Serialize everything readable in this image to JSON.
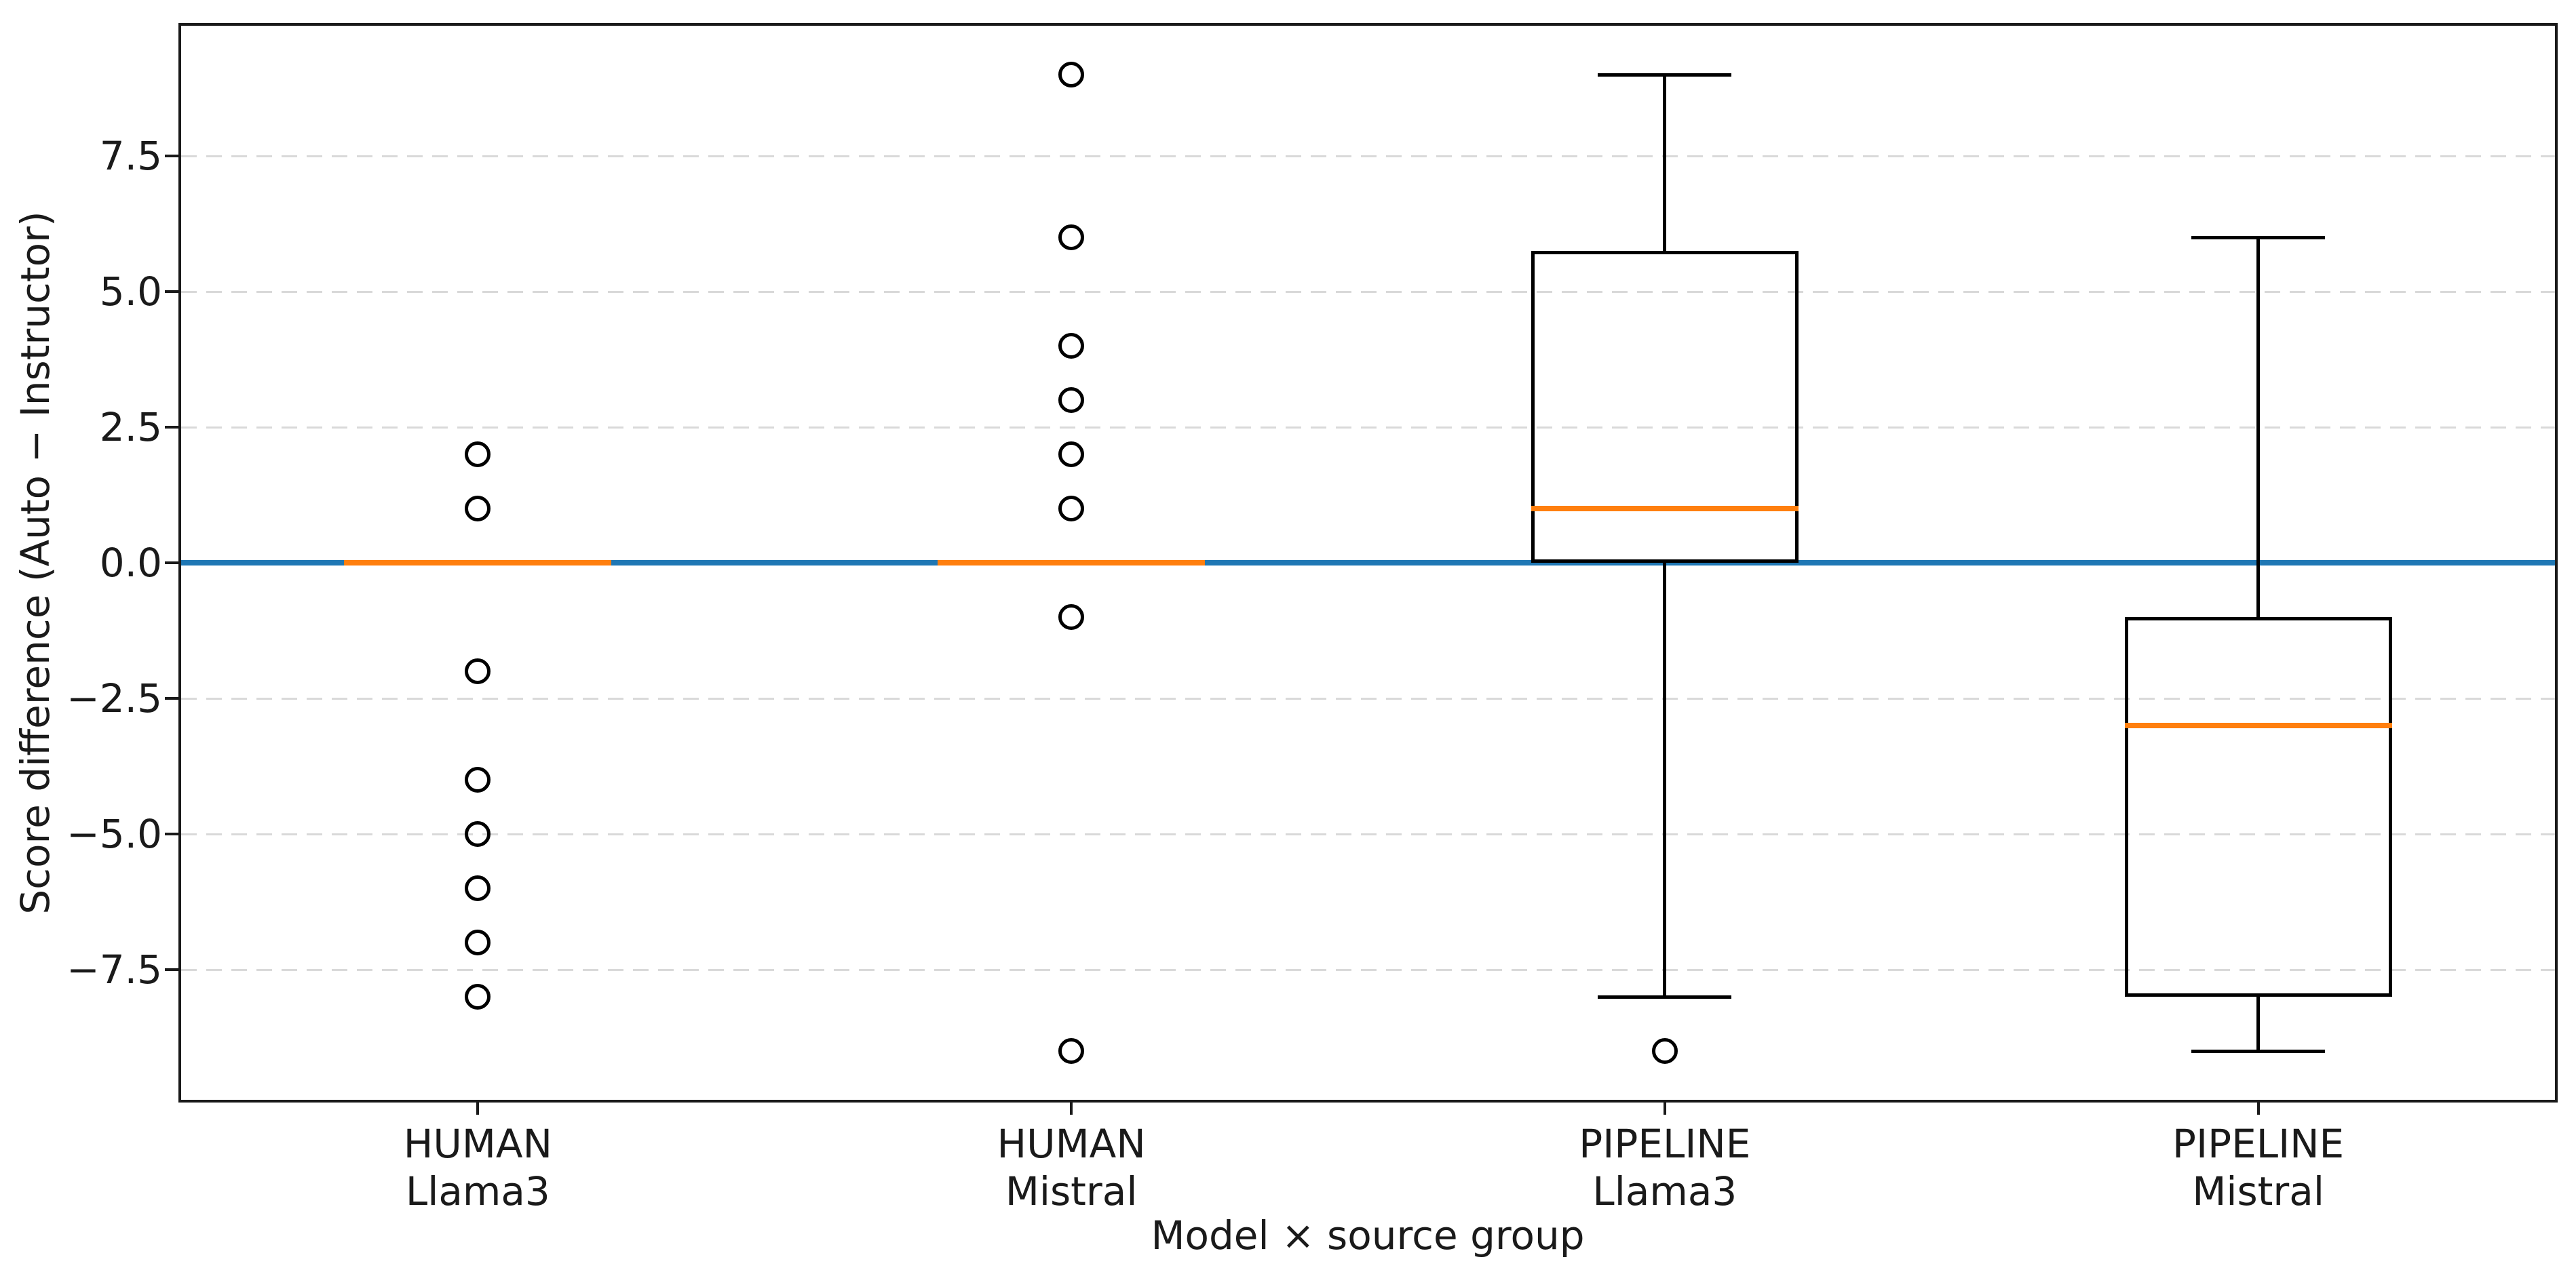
{
  "figure": {
    "background": "#ffffff"
  },
  "chart_data": {
    "type": "boxplot",
    "title": "",
    "xlabel": "Model × source group",
    "ylabel": "Score difference (Auto − Instructor)",
    "ylim": [
      -9.9,
      9.9
    ],
    "yticks": [
      {
        "value": 7.5,
        "label": "7.5"
      },
      {
        "value": 5.0,
        "label": "5.0"
      },
      {
        "value": 2.5,
        "label": "2.5"
      },
      {
        "value": 0.0,
        "label": "0.0"
      },
      {
        "value": -2.5,
        "label": "−2.5"
      },
      {
        "value": -5.0,
        "label": "−5.0"
      },
      {
        "value": -7.5,
        "label": "−7.5"
      }
    ],
    "grid": {
      "axis": "y",
      "style": "dashed",
      "color": "#d9d9d9"
    },
    "zero_line": {
      "y": 0.0,
      "color": "#1f77b4"
    },
    "colors": {
      "median": "#ff7f0e",
      "box_edge": "#000000",
      "flier_edge": "#000000"
    },
    "box_width": 0.45,
    "series": [
      {
        "label_lines": [
          "HUMAN",
          "Llama3"
        ],
        "position": 1,
        "q1": 0,
        "median": 0,
        "q3": 0,
        "whisker_low": 0,
        "whisker_high": 0,
        "fliers": [
          2,
          1,
          -2,
          -4,
          -5,
          -6,
          -7,
          -8
        ]
      },
      {
        "label_lines": [
          "HUMAN",
          "Mistral"
        ],
        "position": 2,
        "q1": 0,
        "median": 0,
        "q3": 0,
        "whisker_low": 0,
        "whisker_high": 0,
        "fliers": [
          9,
          6,
          4,
          3,
          2,
          1,
          -1,
          -9
        ]
      },
      {
        "label_lines": [
          "PIPELINE",
          "Llama3"
        ],
        "position": 3,
        "q1": 0,
        "median": 1,
        "q3": 5.75,
        "whisker_low": -8,
        "whisker_high": 9,
        "fliers": [
          -9
        ]
      },
      {
        "label_lines": [
          "PIPELINE",
          "Mistral"
        ],
        "position": 4,
        "q1": -8,
        "median": -3,
        "q3": -1,
        "whisker_low": -9,
        "whisker_high": 6,
        "fliers": []
      }
    ]
  }
}
